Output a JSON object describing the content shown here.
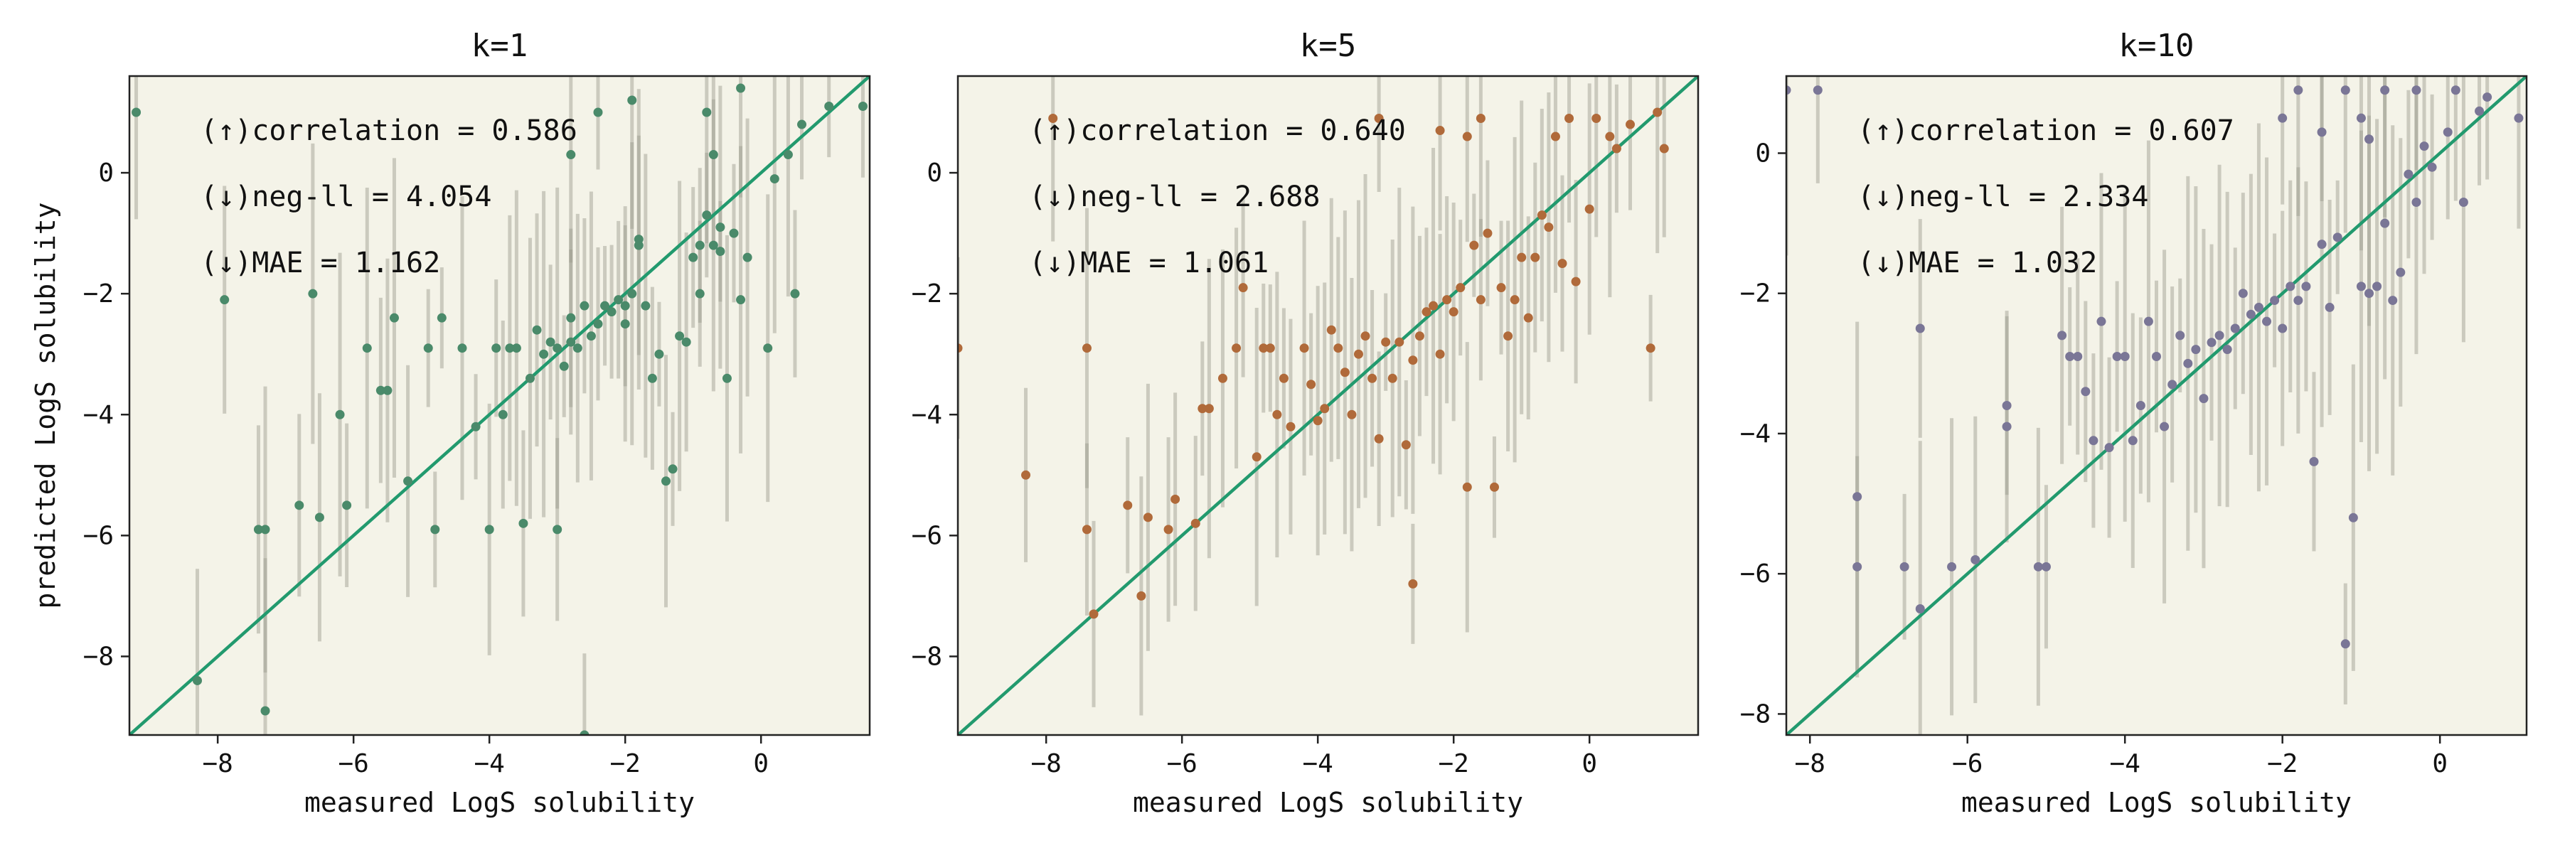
{
  "figure": {
    "background": "#ffffff",
    "plot_background": "#f4f3e8"
  },
  "chart_data": [
    {
      "type": "scatter",
      "title": "k=1",
      "xlabel": "measured LogS solubility",
      "ylabel": "predicted LogS solubility",
      "xlim": [
        -9.3,
        1.6
      ],
      "ylim": [
        -9.3,
        1.6
      ],
      "xticks": [
        -8,
        -6,
        -4,
        -2,
        0
      ],
      "yticks": [
        -8,
        -6,
        -4,
        -2,
        0
      ],
      "grid": false,
      "point_color": "#4a8a6a",
      "errorbar_color": "#9a9a8c",
      "diagonal_color": "#229a6e",
      "annotations": [
        "(↑)correlation = 0.586",
        "(↓)neg-ll = 4.054",
        "(↓)MAE = 1.162"
      ],
      "points": [
        [
          -9.2,
          1.0
        ],
        [
          -8.3,
          -8.4
        ],
        [
          -7.9,
          -2.1
        ],
        [
          -7.3,
          -5.9
        ],
        [
          -7.3,
          -8.9
        ],
        [
          -7.4,
          -5.9
        ],
        [
          -6.6,
          -2.0
        ],
        [
          -6.8,
          -5.5
        ],
        [
          -6.5,
          -5.7
        ],
        [
          -6.2,
          -4.0
        ],
        [
          -6.1,
          -5.5
        ],
        [
          -5.8,
          -2.9
        ],
        [
          -5.6,
          -3.6
        ],
        [
          -5.5,
          -3.6
        ],
        [
          -5.4,
          -2.4
        ],
        [
          -5.2,
          -5.1
        ],
        [
          -4.9,
          -2.9
        ],
        [
          -4.8,
          -5.9
        ],
        [
          -4.7,
          -2.4
        ],
        [
          -4.4,
          -2.9
        ],
        [
          -4.2,
          -4.2
        ],
        [
          -4.0,
          -5.9
        ],
        [
          -3.9,
          -2.9
        ],
        [
          -3.8,
          -4.0
        ],
        [
          -3.7,
          -2.9
        ],
        [
          -3.6,
          -2.9
        ],
        [
          -3.5,
          -5.8
        ],
        [
          -3.4,
          -3.4
        ],
        [
          -3.3,
          -2.6
        ],
        [
          -3.2,
          -3.0
        ],
        [
          -3.1,
          -2.8
        ],
        [
          -3.0,
          -2.9
        ],
        [
          -3.0,
          -5.9
        ],
        [
          -2.9,
          -3.2
        ],
        [
          -2.8,
          -2.8
        ],
        [
          -2.8,
          -2.4
        ],
        [
          -2.7,
          -2.9
        ],
        [
          -2.6,
          -2.2
        ],
        [
          -2.6,
          -9.3
        ],
        [
          -2.5,
          -2.7
        ],
        [
          -2.4,
          -2.5
        ],
        [
          -2.3,
          -2.2
        ],
        [
          -2.2,
          -2.3
        ],
        [
          -2.1,
          -2.1
        ],
        [
          -2.0,
          -2.2
        ],
        [
          -2.0,
          -2.5
        ],
        [
          -1.9,
          -2.0
        ],
        [
          -1.8,
          -1.1
        ],
        [
          -1.8,
          -1.2
        ],
        [
          -1.7,
          -2.2
        ],
        [
          -1.6,
          -3.4
        ],
        [
          -1.5,
          -3.0
        ],
        [
          -1.4,
          -5.1
        ],
        [
          -1.3,
          -4.9
        ],
        [
          -1.2,
          -2.7
        ],
        [
          -1.1,
          -2.8
        ],
        [
          -1.0,
          -1.4
        ],
        [
          -0.9,
          -1.2
        ],
        [
          -0.9,
          -2.0
        ],
        [
          -0.8,
          -0.7
        ],
        [
          -0.7,
          -1.2
        ],
        [
          -0.6,
          -1.3
        ],
        [
          -0.5,
          -3.4
        ],
        [
          -0.4,
          -1.0
        ],
        [
          -0.3,
          -2.1
        ],
        [
          -0.2,
          -1.4
        ],
        [
          0.1,
          -2.9
        ],
        [
          0.2,
          -0.1
        ],
        [
          0.4,
          0.3
        ],
        [
          0.5,
          -2.0
        ],
        [
          0.6,
          0.8
        ],
        [
          -1.9,
          1.2
        ],
        [
          -0.8,
          1.0
        ],
        [
          -2.8,
          0.3
        ],
        [
          -2.4,
          1.0
        ],
        [
          -0.7,
          0.3
        ],
        [
          1.0,
          1.1
        ],
        [
          1.5,
          1.1
        ],
        [
          -0.3,
          1.4
        ],
        [
          -0.6,
          -0.9
        ]
      ]
    },
    {
      "type": "scatter",
      "title": "k=5",
      "xlabel": "measured LogS solubility",
      "ylabel": "",
      "xlim": [
        -9.3,
        1.6
      ],
      "ylim": [
        -9.3,
        1.6
      ],
      "xticks": [
        -8,
        -6,
        -4,
        -2,
        0
      ],
      "yticks": [
        -8,
        -6,
        -4,
        -2,
        0
      ],
      "grid": false,
      "point_color": "#b06a3a",
      "errorbar_color": "#9a9a8c",
      "diagonal_color": "#229a6e",
      "annotations": [
        "(↑)correlation = 0.640",
        "(↓)neg-ll = 2.688",
        "(↓)MAE = 1.061"
      ],
      "points": [
        [
          -9.3,
          -2.9
        ],
        [
          -8.3,
          -5.0
        ],
        [
          -7.9,
          0.9
        ],
        [
          -7.4,
          -5.9
        ],
        [
          -7.4,
          -2.9
        ],
        [
          -7.3,
          -7.3
        ],
        [
          -6.8,
          -5.5
        ],
        [
          -6.6,
          -7.0
        ],
        [
          -6.5,
          -5.7
        ],
        [
          -6.2,
          -5.9
        ],
        [
          -6.1,
          -5.4
        ],
        [
          -5.8,
          -5.8
        ],
        [
          -5.7,
          -3.9
        ],
        [
          -5.6,
          -3.9
        ],
        [
          -5.4,
          -3.4
        ],
        [
          -5.2,
          -2.9
        ],
        [
          -5.1,
          -1.9
        ],
        [
          -4.9,
          -4.7
        ],
        [
          -4.8,
          -2.9
        ],
        [
          -4.7,
          -2.9
        ],
        [
          -4.6,
          -4.0
        ],
        [
          -4.5,
          -3.4
        ],
        [
          -4.4,
          -4.2
        ],
        [
          -4.2,
          -2.9
        ],
        [
          -4.1,
          -3.5
        ],
        [
          -4.0,
          -4.1
        ],
        [
          -3.9,
          -3.9
        ],
        [
          -3.8,
          -2.6
        ],
        [
          -3.7,
          -2.9
        ],
        [
          -3.6,
          -3.3
        ],
        [
          -3.5,
          -4.0
        ],
        [
          -3.4,
          -3.0
        ],
        [
          -3.3,
          -2.7
        ],
        [
          -3.2,
          -3.4
        ],
        [
          -3.1,
          -4.4
        ],
        [
          -3.0,
          -2.8
        ],
        [
          -2.9,
          -3.4
        ],
        [
          -2.8,
          -2.8
        ],
        [
          -2.7,
          -4.5
        ],
        [
          -2.6,
          -3.1
        ],
        [
          -2.6,
          -6.8
        ],
        [
          -2.5,
          -2.7
        ],
        [
          -2.4,
          -2.3
        ],
        [
          -2.3,
          -2.2
        ],
        [
          -2.2,
          -3.0
        ],
        [
          -2.1,
          -2.1
        ],
        [
          -2.0,
          -2.3
        ],
        [
          -1.9,
          -1.9
        ],
        [
          -1.8,
          -5.2
        ],
        [
          -1.7,
          -1.2
        ],
        [
          -1.6,
          -2.1
        ],
        [
          -1.5,
          -1.0
        ],
        [
          -1.4,
          -5.2
        ],
        [
          -1.3,
          -1.9
        ],
        [
          -1.2,
          -2.7
        ],
        [
          -1.1,
          -2.1
        ],
        [
          -1.0,
          -1.4
        ],
        [
          -0.9,
          -2.4
        ],
        [
          -0.8,
          -1.4
        ],
        [
          -0.7,
          -0.7
        ],
        [
          -0.6,
          -0.9
        ],
        [
          -0.4,
          -1.5
        ],
        [
          -0.3,
          0.9
        ],
        [
          -0.2,
          -1.8
        ],
        [
          0.0,
          -0.6
        ],
        [
          0.1,
          0.9
        ],
        [
          0.3,
          0.6
        ],
        [
          0.4,
          0.4
        ],
        [
          0.6,
          0.8
        ],
        [
          0.9,
          -2.9
        ],
        [
          1.0,
          1.0
        ],
        [
          1.1,
          0.4
        ],
        [
          -2.2,
          0.7
        ],
        [
          -1.6,
          0.9
        ],
        [
          -1.8,
          0.6
        ],
        [
          -0.5,
          0.6
        ],
        [
          -3.1,
          0.9
        ]
      ]
    },
    {
      "type": "scatter",
      "title": "k=10",
      "xlabel": "measured LogS solubility",
      "ylabel": "",
      "xlim": [
        -8.3,
        1.1
      ],
      "ylim": [
        -8.3,
        1.1
      ],
      "xticks": [
        -8,
        -6,
        -4,
        -2,
        0
      ],
      "yticks": [
        -8,
        -6,
        -4,
        -2,
        0
      ],
      "grid": false,
      "point_color": "#7a7696",
      "errorbar_color": "#9a9a8c",
      "diagonal_color": "#229a6e",
      "annotations": [
        "(↑)correlation = 0.607",
        "(↓)neg-ll = 2.334",
        "(↓)MAE = 1.032"
      ],
      "points": [
        [
          -8.3,
          0.9
        ],
        [
          -7.9,
          0.9
        ],
        [
          -7.4,
          -4.9
        ],
        [
          -7.4,
          -5.9
        ],
        [
          -6.8,
          -5.9
        ],
        [
          -6.6,
          -2.5
        ],
        [
          -6.6,
          -6.5
        ],
        [
          -6.2,
          -5.9
        ],
        [
          -5.9,
          -5.8
        ],
        [
          -5.5,
          -3.6
        ],
        [
          -5.5,
          -3.9
        ],
        [
          -5.1,
          -5.9
        ],
        [
          -5.0,
          -5.9
        ],
        [
          -4.8,
          -2.6
        ],
        [
          -4.7,
          -2.9
        ],
        [
          -4.6,
          -2.9
        ],
        [
          -4.5,
          -3.4
        ],
        [
          -4.4,
          -4.1
        ],
        [
          -4.3,
          -2.4
        ],
        [
          -4.2,
          -4.2
        ],
        [
          -4.1,
          -2.9
        ],
        [
          -4.0,
          -2.9
        ],
        [
          -3.9,
          -4.1
        ],
        [
          -3.8,
          -3.6
        ],
        [
          -3.7,
          -2.4
        ],
        [
          -3.6,
          -2.9
        ],
        [
          -3.5,
          -3.9
        ],
        [
          -3.4,
          -3.3
        ],
        [
          -3.3,
          -2.6
        ],
        [
          -3.2,
          -3.0
        ],
        [
          -3.1,
          -2.8
        ],
        [
          -3.0,
          -3.5
        ],
        [
          -2.9,
          -2.7
        ],
        [
          -2.8,
          -2.6
        ],
        [
          -2.7,
          -2.8
        ],
        [
          -2.6,
          -2.5
        ],
        [
          -2.5,
          -2.0
        ],
        [
          -2.4,
          -2.3
        ],
        [
          -2.3,
          -2.2
        ],
        [
          -2.2,
          -2.4
        ],
        [
          -2.1,
          -2.1
        ],
        [
          -2.0,
          -2.5
        ],
        [
          -1.9,
          -1.9
        ],
        [
          -1.8,
          -2.1
        ],
        [
          -1.7,
          -1.9
        ],
        [
          -1.6,
          -4.4
        ],
        [
          -1.5,
          -1.3
        ],
        [
          -1.4,
          -2.2
        ],
        [
          -1.3,
          -1.2
        ],
        [
          -1.2,
          -7.0
        ],
        [
          -1.1,
          -5.2
        ],
        [
          -1.0,
          -1.9
        ],
        [
          -0.9,
          -2.0
        ],
        [
          -0.8,
          -1.9
        ],
        [
          -0.7,
          -1.0
        ],
        [
          -0.6,
          -2.1
        ],
        [
          -0.5,
          -1.7
        ],
        [
          -0.4,
          -0.3
        ],
        [
          -0.3,
          -0.7
        ],
        [
          -0.2,
          0.1
        ],
        [
          -0.1,
          -0.2
        ],
        [
          0.1,
          0.3
        ],
        [
          0.3,
          -0.7
        ],
        [
          0.5,
          0.6
        ],
        [
          0.6,
          0.8
        ],
        [
          1.0,
          0.5
        ],
        [
          -1.8,
          0.9
        ],
        [
          -1.2,
          0.9
        ],
        [
          -1.0,
          0.5
        ],
        [
          -0.7,
          0.9
        ],
        [
          -0.3,
          0.9
        ],
        [
          0.2,
          0.9
        ],
        [
          -2.0,
          0.5
        ],
        [
          -1.5,
          0.3
        ],
        [
          -0.9,
          0.2
        ]
      ]
    }
  ]
}
